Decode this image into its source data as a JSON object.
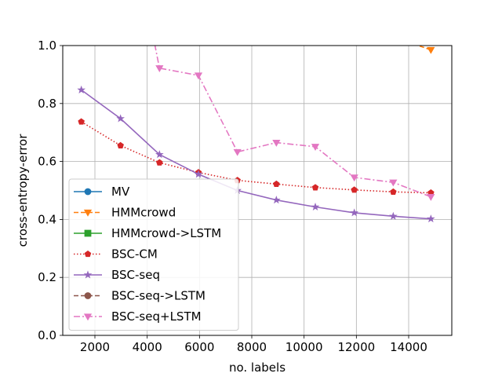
{
  "chart_data": {
    "type": "line",
    "xlabel": "no. labels",
    "ylabel": "cross-entropy-error",
    "xlim": [
      770,
      15650
    ],
    "ylim": [
      0.0,
      1.0
    ],
    "xticks": [
      2000,
      4000,
      6000,
      8000,
      10000,
      12000,
      14000
    ],
    "yticks": [
      0.0,
      0.2,
      0.4,
      0.6,
      0.8,
      1.0
    ],
    "xtick_labels": [
      "2000",
      "4000",
      "6000",
      "8000",
      "10000",
      "12000",
      "14000"
    ],
    "ytick_labels": [
      "0.0",
      "0.2",
      "0.4",
      "0.6",
      "0.8",
      "1.0"
    ],
    "grid": true,
    "legend_position": "lower-left",
    "series": [
      {
        "name": "MV",
        "color": "#1f77b4",
        "linestyle": "solid",
        "marker": "circle",
        "x": [],
        "y": []
      },
      {
        "name": "HMMcrowd",
        "color": "#ff7f0e",
        "linestyle": "dashed",
        "marker": "triangle-down",
        "x": [
          13400,
          14850
        ],
        "y": [
          1.03,
          0.985
        ]
      },
      {
        "name": "HMMcrowd->LSTM",
        "color": "#2ca02c",
        "linestyle": "solid",
        "marker": "square",
        "x": [],
        "y": []
      },
      {
        "name": "BSC-CM",
        "color": "#d62728",
        "linestyle": "dotted",
        "marker": "pentagon",
        "x": [
          1480,
          2980,
          4470,
          5960,
          7450,
          8940,
          10430,
          11920,
          13410,
          14850
        ],
        "y": [
          0.737,
          0.655,
          0.596,
          0.562,
          0.535,
          0.522,
          0.51,
          0.502,
          0.495,
          0.492
        ]
      },
      {
        "name": "BSC-seq",
        "color": "#9467bd",
        "linestyle": "solid",
        "marker": "star",
        "x": [
          1480,
          2980,
          4470,
          5960,
          7450,
          8940,
          10430,
          11920,
          13410,
          14850
        ],
        "y": [
          0.847,
          0.748,
          0.624,
          0.556,
          0.5,
          0.467,
          0.443,
          0.423,
          0.411,
          0.402
        ]
      },
      {
        "name": "BSC-seq->LSTM",
        "color": "#8c564b",
        "linestyle": "dashed",
        "marker": "circle",
        "x": [],
        "y": []
      },
      {
        "name": "BSC-seq+LSTM",
        "color": "#e377c2",
        "linestyle": "dashdot",
        "marker": "triangle-down",
        "x": [
          2980,
          4470,
          5960,
          7450,
          8940,
          10430,
          11920,
          13410,
          14850
        ],
        "y": [
          1.6,
          0.922,
          0.897,
          0.633,
          0.665,
          0.651,
          0.545,
          0.528,
          0.478
        ]
      }
    ]
  }
}
